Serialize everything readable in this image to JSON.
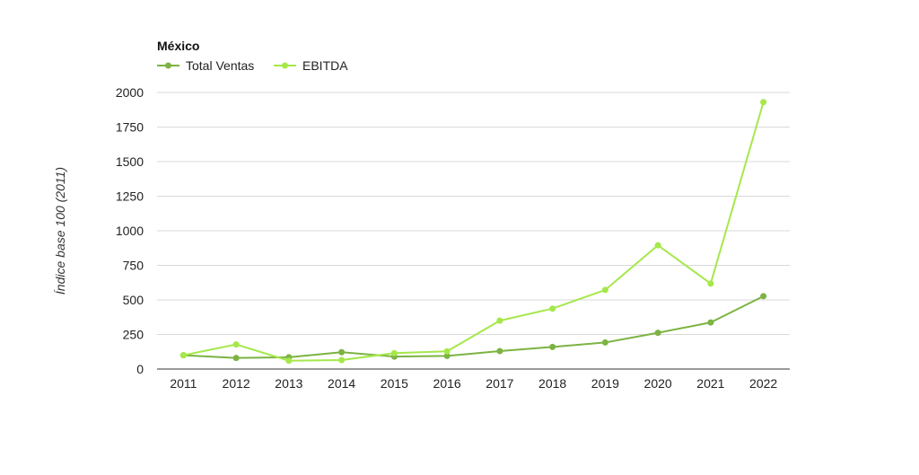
{
  "chart_data": {
    "type": "line",
    "title": "México",
    "xlabel": "",
    "ylabel": "Índice base 100 (2011)",
    "x": [
      "2011",
      "2012",
      "2013",
      "2014",
      "2015",
      "2016",
      "2017",
      "2018",
      "2019",
      "2020",
      "2021",
      "2022"
    ],
    "ylim": [
      0,
      2000
    ],
    "yticks": [
      "0",
      "250",
      "500",
      "750",
      "1000",
      "1250",
      "1500",
      "1750",
      "2000"
    ],
    "grid": true,
    "legend_position": "top-left",
    "series": [
      {
        "name": "Total Ventas",
        "color": "#7cb342",
        "values": [
          100,
          80,
          85,
          122,
          90,
          95,
          130,
          160,
          192,
          262,
          337,
          527
        ]
      },
      {
        "name": "EBITDA",
        "color": "#a5e84a",
        "values": [
          100,
          178,
          60,
          65,
          115,
          128,
          350,
          437,
          572,
          895,
          618,
          1930
        ]
      }
    ]
  }
}
